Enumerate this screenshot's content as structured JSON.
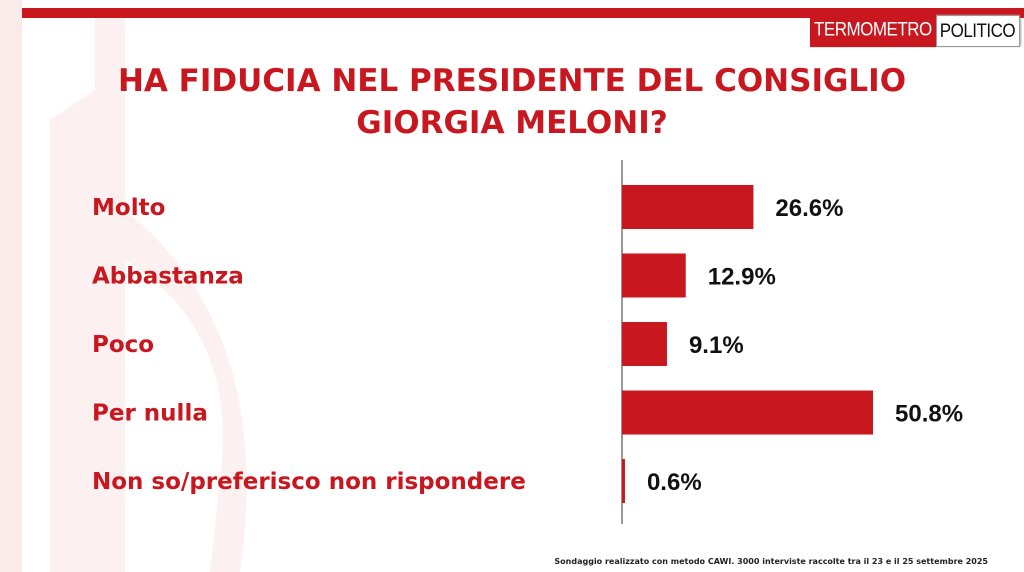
{
  "brand": {
    "part1": "TERMOMETRO",
    "part2": "POLITICO"
  },
  "title": {
    "line1": "HA FIDUCIA NEL PRESIDENTE DEL CONSIGLIO",
    "line2": "GIORGIA MELONI?"
  },
  "footer": {
    "note": "Sondaggio realizzato con metodo CAWI. 3000 interviste raccolte tra il 23 e il 25 settembre 2025"
  },
  "colors": {
    "accent": "#c8171e",
    "text": "#111111"
  },
  "chart_data": {
    "type": "bar",
    "orientation": "horizontal",
    "categories": [
      "Molto",
      "Abbastanza",
      "Poco",
      "Per nulla",
      "Non so/preferisco non rispondere"
    ],
    "values": [
      26.6,
      12.9,
      9.1,
      50.8,
      0.6
    ],
    "value_labels": [
      "26.6%",
      "12.9%",
      "9.1%",
      "50.8%",
      "0.6%"
    ],
    "xlim": [
      0,
      50.8
    ],
    "grid": false,
    "legend": "none"
  }
}
